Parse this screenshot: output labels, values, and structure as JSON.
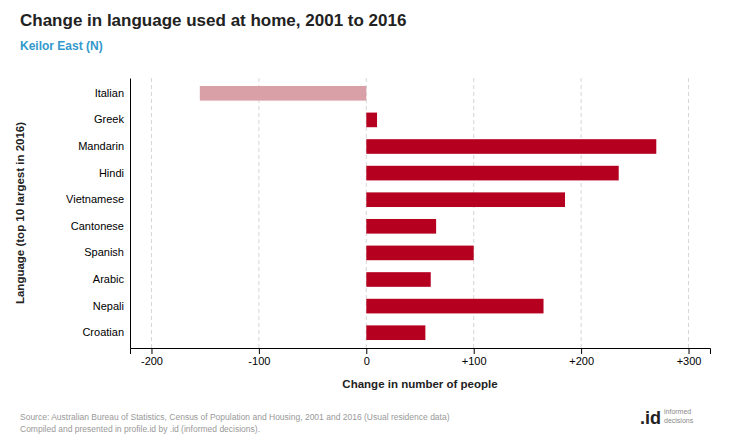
{
  "chart_data": {
    "type": "bar",
    "orientation": "horizontal",
    "title": "Change in language used at home, 2001 to 2016",
    "subtitle": "Keilor East (N)",
    "xlabel": "Change in number of people",
    "ylabel": "Language (top 10 largest in 2016)",
    "categories": [
      "Croatian",
      "Nepali",
      "Arabic",
      "Spanish",
      "Cantonese",
      "Vietnamese",
      "Hindi",
      "Mandarin",
      "Greek",
      "Italian"
    ],
    "values": [
      55,
      165,
      60,
      100,
      65,
      185,
      235,
      270,
      10,
      -155
    ],
    "colors": [
      "#b5001f",
      "#b5001f",
      "#b5001f",
      "#b5001f",
      "#b5001f",
      "#b5001f",
      "#b5001f",
      "#b5001f",
      "#b5001f",
      "#d9a0a8"
    ],
    "xlim": [
      -220,
      320
    ],
    "xticks": [
      -200,
      -100,
      0,
      {
        "value": 100,
        "label": "+100"
      },
      {
        "value": 200,
        "label": "+200"
      },
      {
        "value": 300,
        "label": "+300"
      }
    ],
    "grid": true,
    "annotations": [
      "Source: Australian Bureau of Statistics, Census of Population and Housing, 2001 and 2016 (Usual residence data)",
      "Compiled and presented in profile.id by .id (informed decisions).",
      ".id",
      "informed",
      "decisions"
    ]
  }
}
